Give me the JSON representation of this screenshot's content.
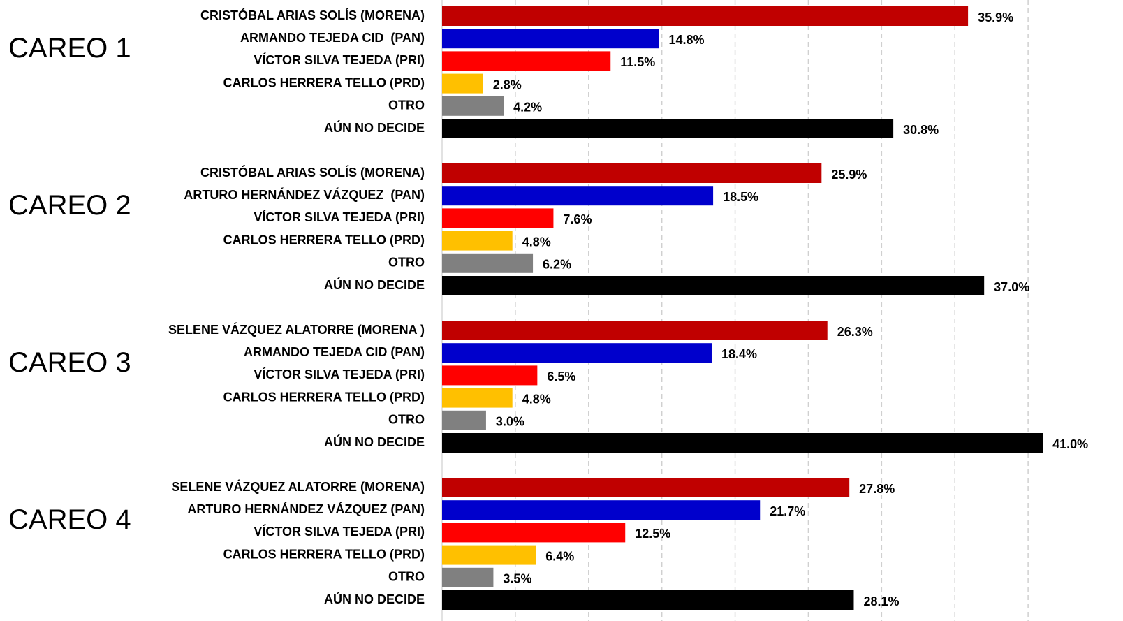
{
  "chart_data": {
    "type": "bar",
    "orientation": "horizontal",
    "colors": [
      "#c00000",
      "#0000cc",
      "#ff0000",
      "#ffc000",
      "#808080",
      "#000000"
    ],
    "xlim": [
      0,
      45
    ],
    "xticks": [
      0,
      5,
      10,
      15,
      20,
      25,
      30,
      35,
      40
    ],
    "grid": true,
    "groups": [
      {
        "name": "CAREO 1",
        "categories": [
          "CRISTÓBAL ARIAS SOLÍS (MORENA)",
          "ARMANDO TEJEDA CID  (PAN)",
          "VÍCTOR SILVA TEJEDA (PRI)",
          "CARLOS HERRERA TELLO (PRD)",
          "OTRO",
          "AÚN NO DECIDE"
        ],
        "values": [
          35.9,
          14.8,
          11.5,
          2.8,
          4.2,
          30.8
        ],
        "value_labels": [
          "35.9%",
          "14.8%",
          "11.5%",
          "2.8%",
          "4.2%",
          "30.8%"
        ]
      },
      {
        "name": "CAREO 2",
        "categories": [
          "CRISTÓBAL ARIAS SOLÍS (MORENA)",
          "ARTURO HERNÁNDEZ VÁZQUEZ  (PAN)",
          "VÍCTOR SILVA TEJEDA (PRI)",
          "CARLOS HERRERA TELLO (PRD)",
          "OTRO",
          "AÚN NO DECIDE"
        ],
        "values": [
          25.9,
          18.5,
          7.6,
          4.8,
          6.2,
          37.0
        ],
        "value_labels": [
          "25.9%",
          "18.5%",
          "7.6%",
          "4.8%",
          "6.2%",
          "37.0%"
        ]
      },
      {
        "name": "CAREO 3",
        "categories": [
          "SELENE VÁZQUEZ ALATORRE (MORENA )",
          "ARMANDO TEJEDA CID (PAN)",
          "VÍCTOR SILVA TEJEDA (PRI)",
          "CARLOS HERRERA TELLO (PRD)",
          "OTRO",
          "AÚN NO DECIDE"
        ],
        "values": [
          26.3,
          18.4,
          6.5,
          4.8,
          3.0,
          41.0
        ],
        "value_labels": [
          "26.3%",
          "18.4%",
          "6.5%",
          "4.8%",
          "3.0%",
          "41.0%"
        ]
      },
      {
        "name": "CAREO 4",
        "categories": [
          "SELENE VÁZQUEZ ALATORRE (MORENA)",
          "ARTURO HERNÁNDEZ VÁZQUEZ (PAN)",
          "VÍCTOR SILVA TEJEDA (PRI)",
          "CARLOS HERRERA TELLO (PRD)",
          "OTRO",
          "AÚN NO DECIDE"
        ],
        "values": [
          27.8,
          21.7,
          12.5,
          6.4,
          3.5,
          28.1
        ],
        "value_labels": [
          "27.8%",
          "21.7%",
          "12.5%",
          "6.4%",
          "3.5%",
          "28.1%"
        ]
      }
    ]
  }
}
